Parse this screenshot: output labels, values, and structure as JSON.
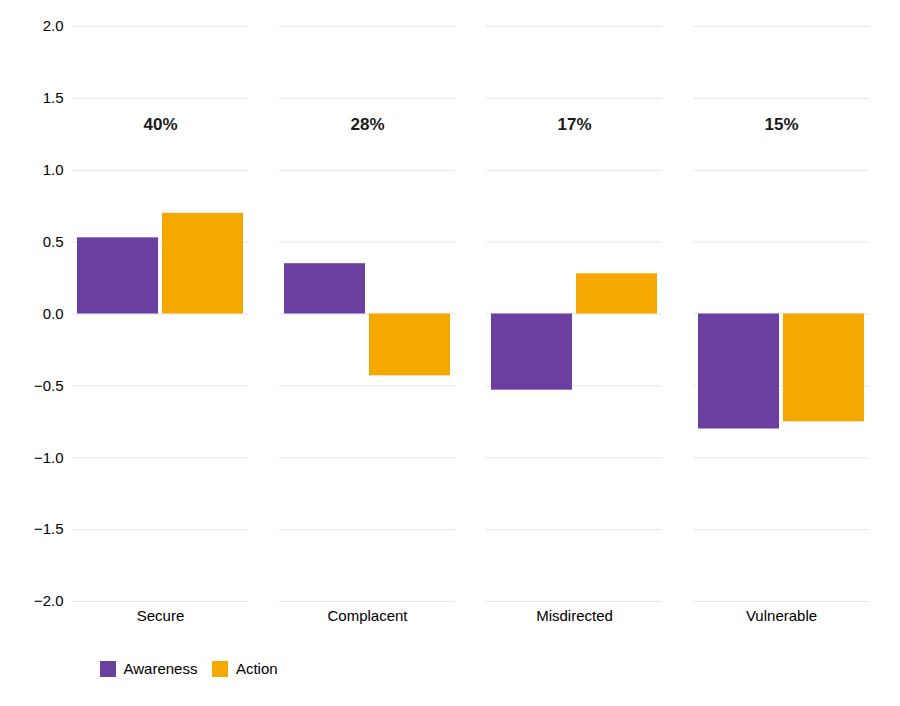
{
  "chart_data": {
    "type": "bar",
    "categories": [
      "Secure",
      "Complacent",
      "Misdirected",
      "Vulnerable"
    ],
    "series": [
      {
        "name": "Awareness",
        "color": "#6B3FA0",
        "values": [
          0.53,
          0.35,
          -0.53,
          -0.8
        ]
      },
      {
        "name": "Action",
        "color": "#F5A800",
        "values": [
          0.7,
          -0.43,
          0.28,
          -0.75
        ]
      }
    ],
    "annotations": [
      {
        "text": "40%",
        "x": "Secure",
        "y": 1.28
      },
      {
        "text": "28%",
        "x": "Complacent",
        "y": 1.28
      },
      {
        "text": "17%",
        "x": "Misdirected",
        "y": 1.28
      },
      {
        "text": "15%",
        "x": "Vulnerable",
        "y": 1.28
      }
    ],
    "ylim": [
      -2.0,
      2.0
    ],
    "yticks": [
      {
        "value": -2.0,
        "label": "−2.0"
      },
      {
        "value": -1.5,
        "label": "−1.5"
      },
      {
        "value": -1.0,
        "label": "−1.0"
      },
      {
        "value": -0.5,
        "label": "−0.5"
      },
      {
        "value": 0.0,
        "label": "0.0"
      },
      0.5,
      {
        "value": 1.0,
        "label": "1.0"
      },
      1.5,
      {
        "value": 2.0,
        "label": "2.0"
      }
    ],
    "grid": true,
    "legend": "lower left"
  }
}
